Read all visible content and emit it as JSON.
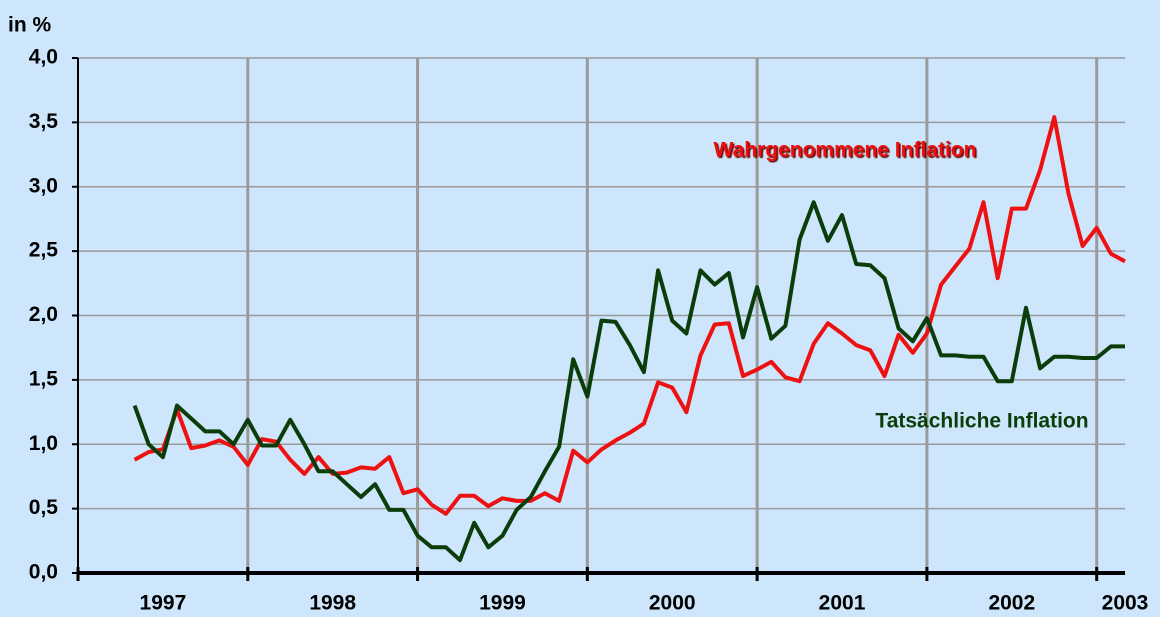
{
  "chart_data": {
    "type": "line",
    "y_axis_label": "in %",
    "categories": [
      null,
      null,
      null,
      null,
      null,
      null,
      "1997",
      null,
      null,
      null,
      null,
      null,
      null,
      null,
      null,
      null,
      null,
      null,
      "1998",
      null,
      null,
      null,
      null,
      null,
      null,
      null,
      null,
      null,
      null,
      null,
      "1999",
      null,
      null,
      null,
      null,
      null,
      null,
      null,
      null,
      null,
      null,
      null,
      "2000",
      null,
      null,
      null,
      null,
      null,
      null,
      null,
      null,
      null,
      null,
      null,
      "2001",
      null,
      null,
      null,
      null,
      null,
      null,
      null,
      null,
      null,
      null,
      null,
      "2002",
      null,
      null,
      null,
      null,
      null,
      null,
      null,
      "2003"
    ],
    "series": [
      {
        "name": "Wahrgenommene Inflation",
        "color": "#ee1111",
        "values": [
          null,
          null,
          null,
          null,
          0.88,
          0.94,
          0.96,
          1.27,
          0.97,
          0.99,
          1.03,
          0.98,
          0.84,
          1.04,
          1.02,
          0.88,
          0.77,
          0.9,
          0.77,
          0.78,
          0.82,
          0.81,
          0.9,
          0.62,
          0.65,
          0.53,
          0.46,
          0.6,
          0.6,
          0.52,
          0.58,
          0.56,
          0.56,
          0.62,
          0.56,
          0.95,
          0.86,
          0.96,
          1.03,
          1.09,
          1.16,
          1.48,
          1.44,
          1.25,
          1.69,
          1.93,
          1.94,
          1.53,
          1.58,
          1.64,
          1.52,
          1.49,
          1.78,
          1.94,
          1.86,
          1.77,
          1.73,
          1.53,
          1.85,
          1.71,
          1.86,
          2.24,
          2.38,
          2.52,
          2.88,
          2.29,
          2.83,
          2.83,
          3.13,
          3.54,
          2.95,
          2.54,
          2.68,
          2.48,
          2.42
        ]
      },
      {
        "name": "Tatsächliche Inflation",
        "color": "#0b3d0b",
        "values": [
          null,
          null,
          null,
          null,
          1.3,
          1.0,
          0.9,
          1.3,
          1.2,
          1.1,
          1.1,
          1.0,
          1.19,
          0.99,
          0.99,
          1.19,
          1.0,
          0.79,
          0.79,
          0.69,
          0.59,
          0.69,
          0.49,
          0.49,
          0.29,
          0.2,
          0.2,
          0.1,
          0.39,
          0.2,
          0.29,
          0.49,
          0.59,
          0.79,
          0.98,
          1.66,
          1.37,
          1.96,
          1.95,
          1.77,
          1.56,
          2.35,
          1.96,
          1.86,
          2.35,
          2.24,
          2.33,
          1.83,
          2.22,
          1.82,
          1.92,
          2.59,
          2.88,
          2.58,
          2.78,
          2.4,
          2.39,
          2.29,
          1.9,
          1.8,
          1.98,
          1.69,
          1.69,
          1.68,
          1.68,
          1.49,
          1.49,
          2.06,
          1.59,
          1.68,
          1.68,
          1.67,
          1.67,
          1.76,
          1.76
        ]
      }
    ],
    "ylim": [
      0,
      4
    ],
    "yticks": [
      {
        "value": 0,
        "label": "0,0"
      },
      {
        "value": 0.5,
        "label": "0,5"
      },
      {
        "value": 1,
        "label": "1,0"
      },
      {
        "value": 1.5,
        "label": "1,5"
      },
      {
        "value": 2,
        "label": "2,0"
      },
      {
        "value": 2.5,
        "label": "2,5"
      },
      {
        "value": 3,
        "label": "3,0"
      },
      {
        "value": 3.5,
        "label": "3,5"
      },
      {
        "value": 4,
        "label": "4,0"
      }
    ],
    "grid": true
  }
}
